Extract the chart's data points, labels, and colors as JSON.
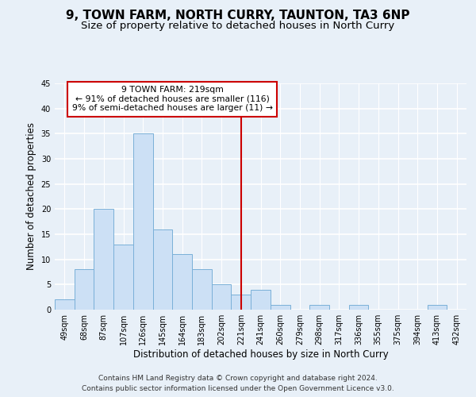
{
  "title": "9, TOWN FARM, NORTH CURRY, TAUNTON, TA3 6NP",
  "subtitle": "Size of property relative to detached houses in North Curry",
  "xlabel": "Distribution of detached houses by size in North Curry",
  "ylabel": "Number of detached properties",
  "bin_labels": [
    "49sqm",
    "68sqm",
    "87sqm",
    "107sqm",
    "126sqm",
    "145sqm",
    "164sqm",
    "183sqm",
    "202sqm",
    "221sqm",
    "241sqm",
    "260sqm",
    "279sqm",
    "298sqm",
    "317sqm",
    "336sqm",
    "355sqm",
    "375sqm",
    "394sqm",
    "413sqm",
    "432sqm"
  ],
  "bar_heights": [
    2,
    8,
    20,
    13,
    35,
    16,
    11,
    8,
    5,
    3,
    4,
    1,
    0,
    1,
    0,
    1,
    0,
    0,
    0,
    1,
    0
  ],
  "bar_color": "#cce0f5",
  "bar_edge_color": "#7ab0d8",
  "red_line_color": "#cc0000",
  "annotation_text": "9 TOWN FARM: 219sqm\n← 91% of detached houses are smaller (116)\n9% of semi-detached houses are larger (11) →",
  "annotation_box_color": "#ffffff",
  "annotation_box_edge_color": "#cc0000",
  "ylim": [
    0,
    45
  ],
  "yticks": [
    0,
    5,
    10,
    15,
    20,
    25,
    30,
    35,
    40,
    45
  ],
  "footer1": "Contains HM Land Registry data © Crown copyright and database right 2024.",
  "footer2": "Contains public sector information licensed under the Open Government Licence v3.0.",
  "bg_color": "#e8f0f8",
  "plot_bg_color": "#e8f0f8",
  "grid_color": "#ffffff",
  "title_fontsize": 11,
  "subtitle_fontsize": 9.5,
  "axis_label_fontsize": 8.5,
  "tick_fontsize": 7,
  "footer_fontsize": 6.5
}
